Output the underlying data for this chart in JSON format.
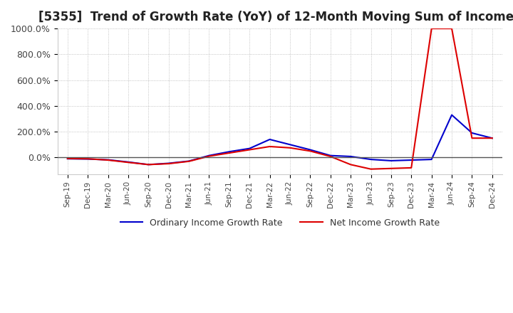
{
  "title": "[5355]  Trend of Growth Rate (YoY) of 12-Month Moving Sum of Incomes",
  "title_fontsize": 12,
  "background_color": "#ffffff",
  "plot_bg_color": "#ffffff",
  "grid_color": "#aaaaaa",
  "ordinary_color": "#0000cc",
  "net_color": "#dd0000",
  "legend_labels": [
    "Ordinary Income Growth Rate",
    "Net Income Growth Rate"
  ],
  "dates": [
    "Sep-19",
    "Dec-19",
    "Mar-20",
    "Jun-20",
    "Sep-20",
    "Dec-20",
    "Mar-21",
    "Jun-21",
    "Sep-21",
    "Dec-21",
    "Mar-22",
    "Jun-22",
    "Sep-22",
    "Dec-22",
    "Mar-23",
    "Jun-23",
    "Sep-23",
    "Dec-23",
    "Mar-24",
    "Jun-24",
    "Sep-24",
    "Dec-24"
  ],
  "ordinary_income": [
    -10,
    -12,
    -18,
    -35,
    -55,
    -45,
    -28,
    15,
    45,
    70,
    140,
    100,
    60,
    15,
    8,
    -15,
    -25,
    -20,
    -15,
    330,
    190,
    150
  ],
  "net_income": [
    -8,
    -10,
    -20,
    -38,
    -55,
    -48,
    -30,
    10,
    35,
    60,
    85,
    75,
    50,
    8,
    -55,
    -90,
    -85,
    -80,
    1000,
    1000,
    150,
    150
  ],
  "ylim": [
    -130,
    1000
  ],
  "yticks": [
    0,
    200,
    400,
    600,
    800,
    1000
  ],
  "ytick_labels": [
    "0.0%",
    "200.0%",
    "400.0%",
    "600.0%",
    "800.0%",
    "1000.0%"
  ]
}
